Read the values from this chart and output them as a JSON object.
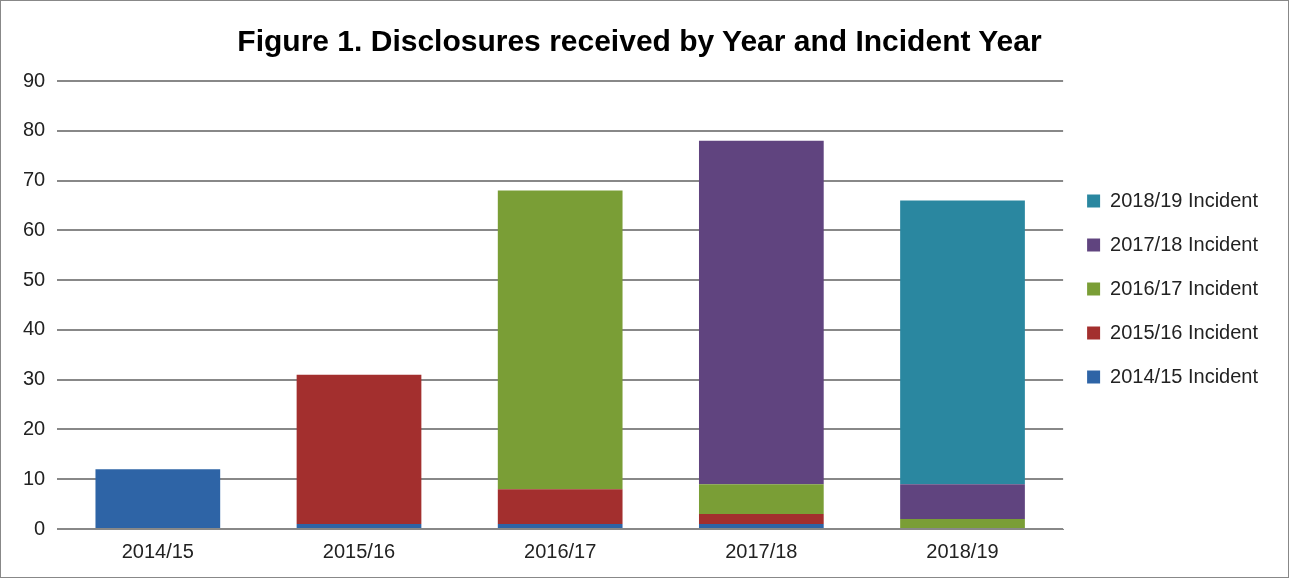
{
  "chart_data": {
    "type": "bar",
    "title": "Figure 1. Disclosures received by Year and Incident Year",
    "categories": [
      "2014/15",
      "2015/16",
      "2016/17",
      "2017/18",
      "2018/19"
    ],
    "stacked": true,
    "series": [
      {
        "name": "2014/15 Incident",
        "color": "#2e64a6",
        "values": [
          12,
          1,
          1,
          1,
          0
        ]
      },
      {
        "name": "2015/16 Incident",
        "color": "#a32f2e",
        "values": [
          0,
          30,
          7,
          2,
          0
        ]
      },
      {
        "name": "2016/17 Incident",
        "color": "#7a9e36",
        "values": [
          0,
          0,
          60,
          6,
          2
        ]
      },
      {
        "name": "2017/18 Incident",
        "color": "#60447f",
        "values": [
          0,
          0,
          0,
          69,
          7
        ]
      },
      {
        "name": "2018/19 Incident",
        "color": "#2a87a0",
        "values": [
          0,
          0,
          0,
          0,
          57
        ]
      }
    ],
    "ylim": [
      0,
      90
    ],
    "yticks": [
      0,
      10,
      20,
      30,
      40,
      50,
      60,
      70,
      80,
      90
    ],
    "grid": "y",
    "legend": "right"
  }
}
